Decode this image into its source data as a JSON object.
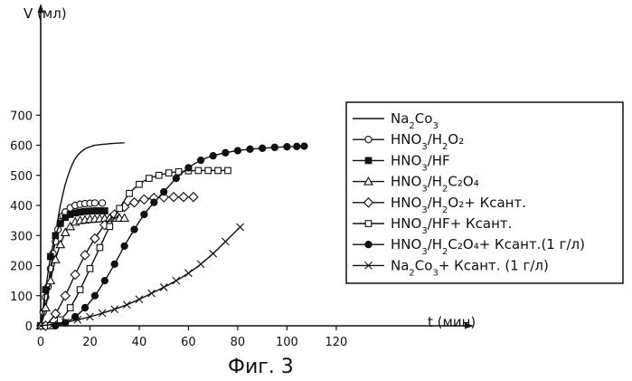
{
  "figure_caption": "Фиг. 3",
  "chart_data": {
    "type": "line",
    "title": "",
    "xlabel": "t (мин)",
    "ylabel": "V (мл)",
    "xlim": [
      0,
      125
    ],
    "ylim": [
      0,
      750
    ],
    "xticks": [
      0,
      20,
      40,
      60,
      80,
      100,
      120
    ],
    "yticks": [
      0,
      100,
      200,
      300,
      400,
      500,
      600,
      700
    ],
    "grid": false,
    "legend_position": "right",
    "series": [
      {
        "name": "Na2Co3",
        "name_parts": {
          "base": "Na",
          "sub1": "2",
          "mid": "Co",
          "sub2": "3",
          "tail": ""
        },
        "marker": "none",
        "x": [
          0,
          1,
          2,
          3,
          4,
          5,
          6,
          7,
          8,
          10,
          12,
          14,
          16,
          18,
          20,
          22,
          25,
          28,
          31,
          34
        ],
        "y": [
          0,
          25,
          60,
          110,
          170,
          235,
          300,
          355,
          400,
          470,
          520,
          555,
          575,
          588,
          595,
          600,
          603,
          605,
          607,
          608
        ]
      },
      {
        "name": "HNO3/H2O2",
        "name_parts": {
          "base": "HNO",
          "sub1": "3",
          "mid": "/H",
          "sub2": "2",
          "tail": "O₂"
        },
        "marker": "circle-open",
        "x": [
          0,
          1,
          2,
          3,
          4,
          5,
          6,
          7,
          8,
          9,
          10,
          12,
          14,
          16,
          18,
          20,
          22,
          25
        ],
        "y": [
          0,
          45,
          95,
          130,
          190,
          240,
          280,
          320,
          345,
          365,
          378,
          392,
          400,
          404,
          406,
          407,
          408,
          408
        ]
      },
      {
        "name": "HNO3/HF",
        "name_parts": {
          "base": "HNO",
          "sub1": "3",
          "mid": "/HF",
          "sub2": "",
          "tail": ""
        },
        "marker": "square-filled",
        "x": [
          0,
          2,
          4,
          6,
          8,
          10,
          12,
          14,
          16,
          18,
          20,
          22,
          24,
          26
        ],
        "y": [
          0,
          120,
          230,
          300,
          340,
          360,
          370,
          375,
          378,
          380,
          381,
          382,
          382,
          382
        ]
      },
      {
        "name": "HNO3/H2C2O4",
        "name_parts": {
          "base": "HNO",
          "sub1": "3",
          "mid": "/H",
          "sub2": "2",
          "tail": "C₂O₄"
        },
        "marker": "triangle-open",
        "x": [
          0,
          2,
          4,
          6,
          8,
          10,
          12,
          14,
          16,
          18,
          20,
          22,
          24,
          26,
          28,
          30,
          32,
          34
        ],
        "y": [
          0,
          60,
          150,
          220,
          270,
          310,
          330,
          345,
          350,
          352,
          354,
          355,
          356,
          357,
          358,
          358,
          358,
          358
        ]
      },
      {
        "name": "HNO3/H2O2+ Ксант.",
        "name_parts": {
          "base": "HNO",
          "sub1": "3",
          "mid": "/H",
          "sub2": "2",
          "tail": "O₂+ Ксант."
        },
        "marker": "diamond-open",
        "x": [
          2,
          6,
          10,
          14,
          18,
          22,
          26,
          30,
          34,
          38,
          42,
          46,
          50,
          54,
          58,
          62
        ],
        "y": [
          0,
          40,
          100,
          170,
          235,
          290,
          335,
          370,
          395,
          410,
          420,
          425,
          427,
          428,
          428,
          428
        ]
      },
      {
        "name": "HNO3/HF+ Ксант.",
        "name_parts": {
          "base": "HNO",
          "sub1": "3",
          "mid": "/HF",
          "sub2": "",
          "tail": "+ Ксант."
        },
        "marker": "square-open",
        "x": [
          4,
          8,
          12,
          16,
          20,
          24,
          28,
          32,
          36,
          40,
          44,
          48,
          52,
          56,
          60,
          64,
          68,
          72,
          76
        ],
        "y": [
          0,
          20,
          60,
          120,
          190,
          260,
          330,
          390,
          440,
          470,
          490,
          500,
          508,
          512,
          515,
          516,
          516,
          516,
          516
        ]
      },
      {
        "name": "HNO3/H2C2O4+ Ксант.(1 г/л)",
        "name_parts": {
          "base": "HNO",
          "sub1": "3",
          "mid": "/H",
          "sub2": "2",
          "tail": "C₂O₄+ Ксант.(1 г/л)"
        },
        "marker": "circle-filled",
        "x": [
          6,
          10,
          14,
          18,
          22,
          26,
          30,
          34,
          38,
          42,
          46,
          50,
          55,
          60,
          65,
          70,
          75,
          80,
          85,
          90,
          95,
          100,
          104,
          107
        ],
        "y": [
          0,
          10,
          30,
          60,
          100,
          150,
          205,
          265,
          320,
          370,
          410,
          445,
          490,
          525,
          550,
          565,
          575,
          582,
          587,
          590,
          593,
          595,
          596,
          597
        ]
      },
      {
        "name": "Na2Co3+ Ксант. (1 г/л)",
        "name_parts": {
          "base": "Na",
          "sub1": "2",
          "mid": "Co",
          "sub2": "3",
          "tail": "+ Ксант. (1 г/л)"
        },
        "marker": "x-cross",
        "x": [
          0,
          5,
          10,
          15,
          20,
          25,
          30,
          35,
          40,
          45,
          50,
          55,
          60,
          65,
          70,
          75,
          81
        ],
        "y": [
          0,
          5,
          12,
          20,
          30,
          42,
          55,
          70,
          88,
          108,
          128,
          150,
          175,
          205,
          240,
          280,
          328
        ]
      }
    ]
  }
}
